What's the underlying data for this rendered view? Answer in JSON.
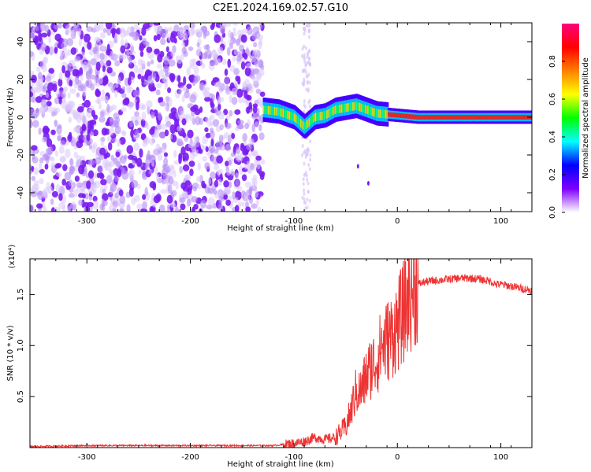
{
  "title": "C2E1.2024.169.02.57.G10",
  "chart_data": [
    {
      "type": "heatmap",
      "xlabel": "Height of straight line (km)",
      "ylabel": "Frequency (Hz)",
      "xlim": [
        -355,
        130
      ],
      "ylim": [
        -50,
        50
      ],
      "xticks": [
        -300,
        -200,
        -100,
        0,
        100
      ],
      "yticks": [
        -40,
        -20,
        0,
        20,
        40
      ],
      "colorbar": {
        "label": "Normalized spectral amplitude",
        "range": [
          0,
          1
        ],
        "ticks": [
          0.0,
          0.2,
          0.4,
          0.6,
          0.8
        ],
        "colors": [
          "#ffffff",
          "#7f00ff",
          "#0000ff",
          "#00ffff",
          "#00ff00",
          "#ffff00",
          "#ff8000",
          "#ff0000",
          "#ff0080"
        ]
      },
      "regions": [
        {
          "x": [
            -355,
            -130
          ],
          "y": [
            -50,
            50
          ],
          "amplitude": 0.1
        },
        {
          "x": [
            -130,
            -90
          ],
          "y": [
            0,
            5
          ],
          "amplitude": 0.5
        },
        {
          "x": [
            -85,
            -10
          ],
          "y": [
            0,
            6
          ],
          "amplitude": 0.55
        },
        {
          "x": [
            -10,
            130
          ],
          "y": [
            -1,
            1
          ],
          "amplitude": 0.85
        }
      ],
      "ridge": [
        {
          "x": -130,
          "y": 4
        },
        {
          "x": -115,
          "y": 3
        },
        {
          "x": -100,
          "y": 0
        },
        {
          "x": -90,
          "y": -5
        },
        {
          "x": -80,
          "y": 0
        },
        {
          "x": -70,
          "y": 1
        },
        {
          "x": -60,
          "y": 4
        },
        {
          "x": -40,
          "y": 6
        },
        {
          "x": -20,
          "y": 2
        },
        {
          "x": 0,
          "y": 1
        },
        {
          "x": 20,
          "y": 0
        },
        {
          "x": 130,
          "y": 0
        }
      ]
    },
    {
      "type": "line",
      "xlabel": "Height of straight line (km)",
      "ylabel": "SNR (10 * v/v)",
      "yscale_label": "(x10⁴)",
      "xlim": [
        -355,
        130
      ],
      "ylim": [
        0,
        1.85
      ],
      "xticks": [
        -300,
        -200,
        -100,
        0,
        100
      ],
      "yticks": [
        0.5,
        1.0,
        1.5
      ],
      "ytick_labels": [
        "0.5",
        "1.0",
        "1.5"
      ],
      "color": "#ee3333",
      "series": [
        {
          "x": [
            -355,
            -300,
            -250,
            -200,
            -150,
            -120,
            -100,
            -90,
            -80,
            -70,
            -60,
            -50,
            -45,
            -40,
            -35,
            -30,
            -25,
            -20,
            -15,
            -10,
            -5,
            0,
            5,
            10,
            15,
            20,
            25,
            30,
            40,
            50,
            60,
            70,
            80,
            90,
            95,
            100,
            110,
            120,
            130
          ],
          "y": [
            0.01,
            0.02,
            0.02,
            0.02,
            0.02,
            0.02,
            0.04,
            0.06,
            0.1,
            0.08,
            0.1,
            0.2,
            0.35,
            0.55,
            0.55,
            0.7,
            0.8,
            0.85,
            1.0,
            1.05,
            1.1,
            1.2,
            1.3,
            1.45,
            1.55,
            1.6,
            1.62,
            1.63,
            1.64,
            1.65,
            1.66,
            1.66,
            1.65,
            1.63,
            1.6,
            1.6,
            1.58,
            1.56,
            1.54
          ]
        }
      ]
    }
  ]
}
